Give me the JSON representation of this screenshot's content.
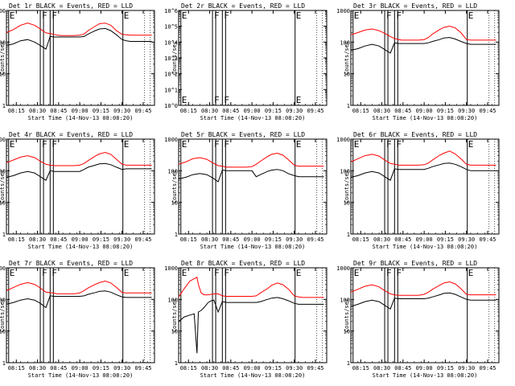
{
  "figure": {
    "background": "#ffffff",
    "events_color": "#000000",
    "lld_color": "#ff0000",
    "time_ticks": [
      "08:15",
      "08:30",
      "08:45",
      "09:00",
      "09:15",
      "09:30",
      "09:45"
    ],
    "time_range_minutes": [
      0,
      105
    ],
    "x_axis_title": "Start Time (14-Nov-13 08:08:20)",
    "y_axis_title": "Counts/sec"
  },
  "chart_data": [
    {
      "type": "line",
      "title": "Det 1r BLACK = Events, RED = LLD",
      "yscale": "log",
      "ylim": [
        1,
        1000
      ],
      "yticks": [
        "1",
        "10",
        "100",
        "1000"
      ],
      "x_minutes": [
        0,
        5,
        10,
        15,
        20,
        24,
        28,
        31,
        34,
        36,
        39,
        44,
        48,
        52,
        55,
        58,
        63,
        66,
        70,
        74,
        78,
        82,
        85,
        88,
        93,
        96,
        100,
        103
      ],
      "series": [
        {
          "name": "Events",
          "values": [
            78,
            88,
            110,
            120,
            100,
            78,
            60,
            150,
            145,
            145,
            145,
            145,
            145,
            145,
            150,
            180,
            230,
            260,
            270,
            230,
            170,
            120,
            110,
            105,
            105,
            105,
            105,
            105
          ]
        },
        {
          "name": "LLD",
          "values": [
            200,
            250,
            340,
            400,
            340,
            260,
            195,
            185,
            175,
            165,
            160,
            160,
            160,
            165,
            180,
            230,
            320,
            380,
            400,
            340,
            230,
            175,
            170,
            165,
            165,
            165,
            165,
            165
          ]
        }
      ],
      "markers": [
        {
          "label": "E",
          "x": 1
        },
        {
          "label": "F",
          "x": 24
        },
        {
          "label": "F",
          "x": 31
        },
        {
          "label": "E",
          "x": 82
        }
      ]
    },
    {
      "type": "line",
      "title": "Det 2r BLACK = Events, RED = LLD",
      "yscale": "log",
      "ylim": [
        1,
        1000000
      ],
      "yticks": [
        "10^0",
        "10^1",
        "10^2",
        "10^3",
        "10^4",
        "10^5",
        "10^6"
      ],
      "x_minutes": [],
      "series": [],
      "markers": [
        {
          "label": "E",
          "x": 1
        },
        {
          "label": "F",
          "x": 24
        },
        {
          "label": "F",
          "x": 31
        },
        {
          "label": "E",
          "x": 82
        }
      ]
    },
    {
      "type": "line",
      "title": "Det 3r BLACK = Events, RED = LLD",
      "yscale": "log",
      "ylim": [
        1,
        1000
      ],
      "yticks": [
        "1",
        "10",
        "100",
        "1000"
      ],
      "x_minutes": [
        0,
        5,
        10,
        15,
        20,
        24,
        28,
        31,
        34,
        36,
        39,
        44,
        48,
        52,
        55,
        58,
        63,
        66,
        70,
        74,
        78,
        82,
        85,
        88,
        93,
        96,
        100,
        103
      ],
      "series": [
        {
          "name": "Events",
          "values": [
            55,
            62,
            75,
            85,
            75,
            58,
            45,
            95,
            90,
            90,
            90,
            90,
            90,
            90,
            95,
            105,
            120,
            135,
            140,
            125,
            105,
            90,
            85,
            85,
            85,
            85,
            85,
            85
          ]
        },
        {
          "name": "LLD",
          "values": [
            170,
            200,
            240,
            260,
            230,
            190,
            150,
            130,
            120,
            115,
            115,
            115,
            115,
            120,
            140,
            180,
            250,
            290,
            320,
            280,
            200,
            120,
            115,
            115,
            115,
            115,
            115,
            115
          ]
        }
      ],
      "markers": [
        {
          "label": "E",
          "x": 1
        },
        {
          "label": "F",
          "x": 24
        },
        {
          "label": "F",
          "x": 31
        },
        {
          "label": "E",
          "x": 82
        }
      ]
    },
    {
      "type": "line",
      "title": "Det 4r BLACK = Events, RED = LLD",
      "yscale": "log",
      "ylim": [
        1,
        1000
      ],
      "yticks": [
        "1",
        "10",
        "100",
        "1000"
      ],
      "x_minutes": [
        0,
        5,
        10,
        15,
        20,
        24,
        28,
        31,
        34,
        36,
        39,
        44,
        48,
        52,
        55,
        58,
        63,
        66,
        70,
        74,
        78,
        82,
        85,
        88,
        93,
        96,
        100,
        103
      ],
      "series": [
        {
          "name": "Events",
          "values": [
            62,
            70,
            85,
            95,
            85,
            65,
            50,
            100,
            95,
            95,
            95,
            95,
            95,
            95,
            110,
            130,
            150,
            165,
            170,
            155,
            130,
            110,
            115,
            115,
            115,
            115,
            115,
            115
          ]
        },
        {
          "name": "LLD",
          "values": [
            180,
            220,
            270,
            300,
            260,
            200,
            160,
            150,
            145,
            145,
            145,
            145,
            145,
            150,
            170,
            210,
            290,
            340,
            380,
            330,
            230,
            160,
            150,
            150,
            150,
            150,
            150,
            150
          ]
        }
      ],
      "markers": [
        {
          "label": "E",
          "x": 1
        },
        {
          "label": "F",
          "x": 24
        },
        {
          "label": "F",
          "x": 31
        },
        {
          "label": "E",
          "x": 82
        }
      ]
    },
    {
      "type": "line",
      "title": "Det 5r BLACK = Events, RED = LLD",
      "yscale": "log",
      "ylim": [
        1,
        1000
      ],
      "yticks": [
        "1",
        "10",
        "100",
        "1000"
      ],
      "x_minutes": [
        0,
        5,
        10,
        15,
        20,
        24,
        28,
        31,
        34,
        36,
        39,
        44,
        48,
        52,
        55,
        58,
        63,
        66,
        70,
        74,
        78,
        82,
        85,
        88,
        93,
        96,
        100,
        103
      ],
      "series": [
        {
          "name": "Events",
          "values": [
            55,
            62,
            75,
            82,
            75,
            60,
            45,
            105,
            100,
            100,
            100,
            100,
            100,
            100,
            65,
            75,
            95,
            105,
            110,
            100,
            80,
            70,
            65,
            65,
            65,
            65,
            65,
            65
          ]
        },
        {
          "name": "LLD",
          "values": [
            160,
            190,
            240,
            260,
            230,
            180,
            145,
            140,
            130,
            130,
            130,
            130,
            130,
            135,
            160,
            200,
            280,
            330,
            360,
            310,
            220,
            150,
            140,
            140,
            140,
            140,
            140,
            140
          ]
        }
      ],
      "markers": [
        {
          "label": "E",
          "x": 1
        },
        {
          "label": "F",
          "x": 24
        },
        {
          "label": "F",
          "x": 31
        },
        {
          "label": "E",
          "x": 82
        }
      ]
    },
    {
      "type": "line",
      "title": "Det 6r BLACK = Events, RED = LLD",
      "yscale": "log",
      "ylim": [
        1,
        1000
      ],
      "yticks": [
        "1",
        "10",
        "100",
        "1000"
      ],
      "x_minutes": [
        0,
        5,
        10,
        15,
        20,
        24,
        28,
        31,
        34,
        36,
        39,
        44,
        48,
        52,
        55,
        58,
        63,
        66,
        70,
        74,
        78,
        82,
        85,
        88,
        93,
        96,
        100,
        103
      ],
      "series": [
        {
          "name": "Events",
          "values": [
            62,
            70,
            85,
            95,
            85,
            65,
            50,
            115,
            110,
            110,
            110,
            110,
            110,
            110,
            120,
            135,
            155,
            170,
            175,
            160,
            135,
            110,
            100,
            100,
            100,
            100,
            100,
            100
          ]
        },
        {
          "name": "LLD",
          "values": [
            190,
            240,
            300,
            330,
            290,
            220,
            170,
            160,
            150,
            150,
            150,
            150,
            150,
            155,
            175,
            220,
            310,
            360,
            420,
            340,
            240,
            160,
            150,
            150,
            150,
            150,
            150,
            150
          ]
        }
      ],
      "markers": [
        {
          "label": "E",
          "x": 1
        },
        {
          "label": "F",
          "x": 24
        },
        {
          "label": "F",
          "x": 31
        },
        {
          "label": "E",
          "x": 82
        }
      ]
    },
    {
      "type": "line",
      "title": "Det 7r BLACK = Events, RED = LLD",
      "yscale": "log",
      "ylim": [
        1,
        1000
      ],
      "yticks": [
        "1",
        "10",
        "100",
        "1000"
      ],
      "x_minutes": [
        0,
        5,
        10,
        15,
        20,
        24,
        28,
        31,
        34,
        36,
        39,
        44,
        48,
        52,
        55,
        58,
        63,
        66,
        70,
        74,
        78,
        82,
        85,
        88,
        93,
        96,
        100,
        103
      ],
      "series": [
        {
          "name": "Events",
          "values": [
            70,
            80,
            95,
            105,
            95,
            75,
            55,
            130,
            125,
            125,
            125,
            125,
            125,
            125,
            130,
            145,
            165,
            180,
            185,
            170,
            140,
            120,
            115,
            115,
            115,
            115,
            115,
            115
          ]
        },
        {
          "name": "LLD",
          "values": [
            190,
            240,
            300,
            340,
            300,
            230,
            170,
            165,
            155,
            150,
            150,
            150,
            150,
            160,
            190,
            230,
            300,
            340,
            380,
            330,
            240,
            165,
            160,
            160,
            160,
            160,
            160,
            160
          ]
        }
      ],
      "markers": [
        {
          "label": "E",
          "x": 1
        },
        {
          "label": "F",
          "x": 24
        },
        {
          "label": "F",
          "x": 31
        },
        {
          "label": "E",
          "x": 82
        }
      ]
    },
    {
      "type": "line",
      "title": "Det 8r BLACK = Events, RED = LLD",
      "yscale": "log",
      "ylim": [
        1,
        1000
      ],
      "yticks": [
        "1",
        "10",
        "100",
        "1000"
      ],
      "x_minutes": [
        0,
        4,
        8,
        11,
        13,
        14,
        16,
        18,
        21,
        23,
        25,
        28,
        31,
        34,
        38,
        44,
        48,
        52,
        55,
        58,
        63,
        66,
        70,
        74,
        78,
        82,
        85,
        88,
        93,
        96,
        100,
        103
      ],
      "series": [
        {
          "name": "Events",
          "values": [
            20,
            28,
            32,
            35,
            2,
            40,
            45,
            55,
            80,
            90,
            95,
            40,
            85,
            80,
            80,
            80,
            80,
            80,
            80,
            85,
            100,
            110,
            115,
            105,
            90,
            75,
            70,
            70,
            70,
            70,
            70,
            70
          ]
        },
        {
          "name": "LLD",
          "values": [
            120,
            220,
            380,
            450,
            500,
            300,
            160,
            140,
            140,
            145,
            150,
            150,
            130,
            125,
            125,
            125,
            125,
            125,
            130,
            160,
            220,
            280,
            330,
            290,
            210,
            130,
            120,
            115,
            115,
            115,
            115,
            115
          ]
        }
      ],
      "markers": [
        {
          "label": "E",
          "x": 1
        },
        {
          "label": "F",
          "x": 24
        },
        {
          "label": "F",
          "x": 31
        },
        {
          "label": "E",
          "x": 82
        }
      ]
    },
    {
      "type": "line",
      "title": "Det 9r BLACK = Events, RED = LLD",
      "yscale": "log",
      "ylim": [
        1,
        1000
      ],
      "yticks": [
        "1",
        "10",
        "100",
        "1000"
      ],
      "x_minutes": [
        0,
        5,
        10,
        15,
        20,
        24,
        28,
        31,
        34,
        36,
        39,
        44,
        48,
        52,
        55,
        58,
        63,
        66,
        70,
        74,
        78,
        82,
        85,
        88,
        93,
        96,
        100,
        103
      ],
      "series": [
        {
          "name": "Events",
          "values": [
            60,
            70,
            85,
            95,
            85,
            65,
            50,
            110,
            105,
            105,
            105,
            105,
            105,
            105,
            110,
            120,
            140,
            155,
            160,
            145,
            120,
            100,
            95,
            95,
            95,
            95,
            95,
            95
          ]
        },
        {
          "name": "LLD",
          "values": [
            170,
            210,
            260,
            290,
            250,
            190,
            150,
            140,
            135,
            135,
            135,
            135,
            135,
            145,
            170,
            210,
            280,
            330,
            360,
            310,
            220,
            145,
            140,
            140,
            140,
            140,
            140,
            140
          ]
        }
      ],
      "markers": [
        {
          "label": "E",
          "x": 1
        },
        {
          "label": "F",
          "x": 24
        },
        {
          "label": "F",
          "x": 31
        },
        {
          "label": "E",
          "x": 82
        }
      ]
    }
  ]
}
